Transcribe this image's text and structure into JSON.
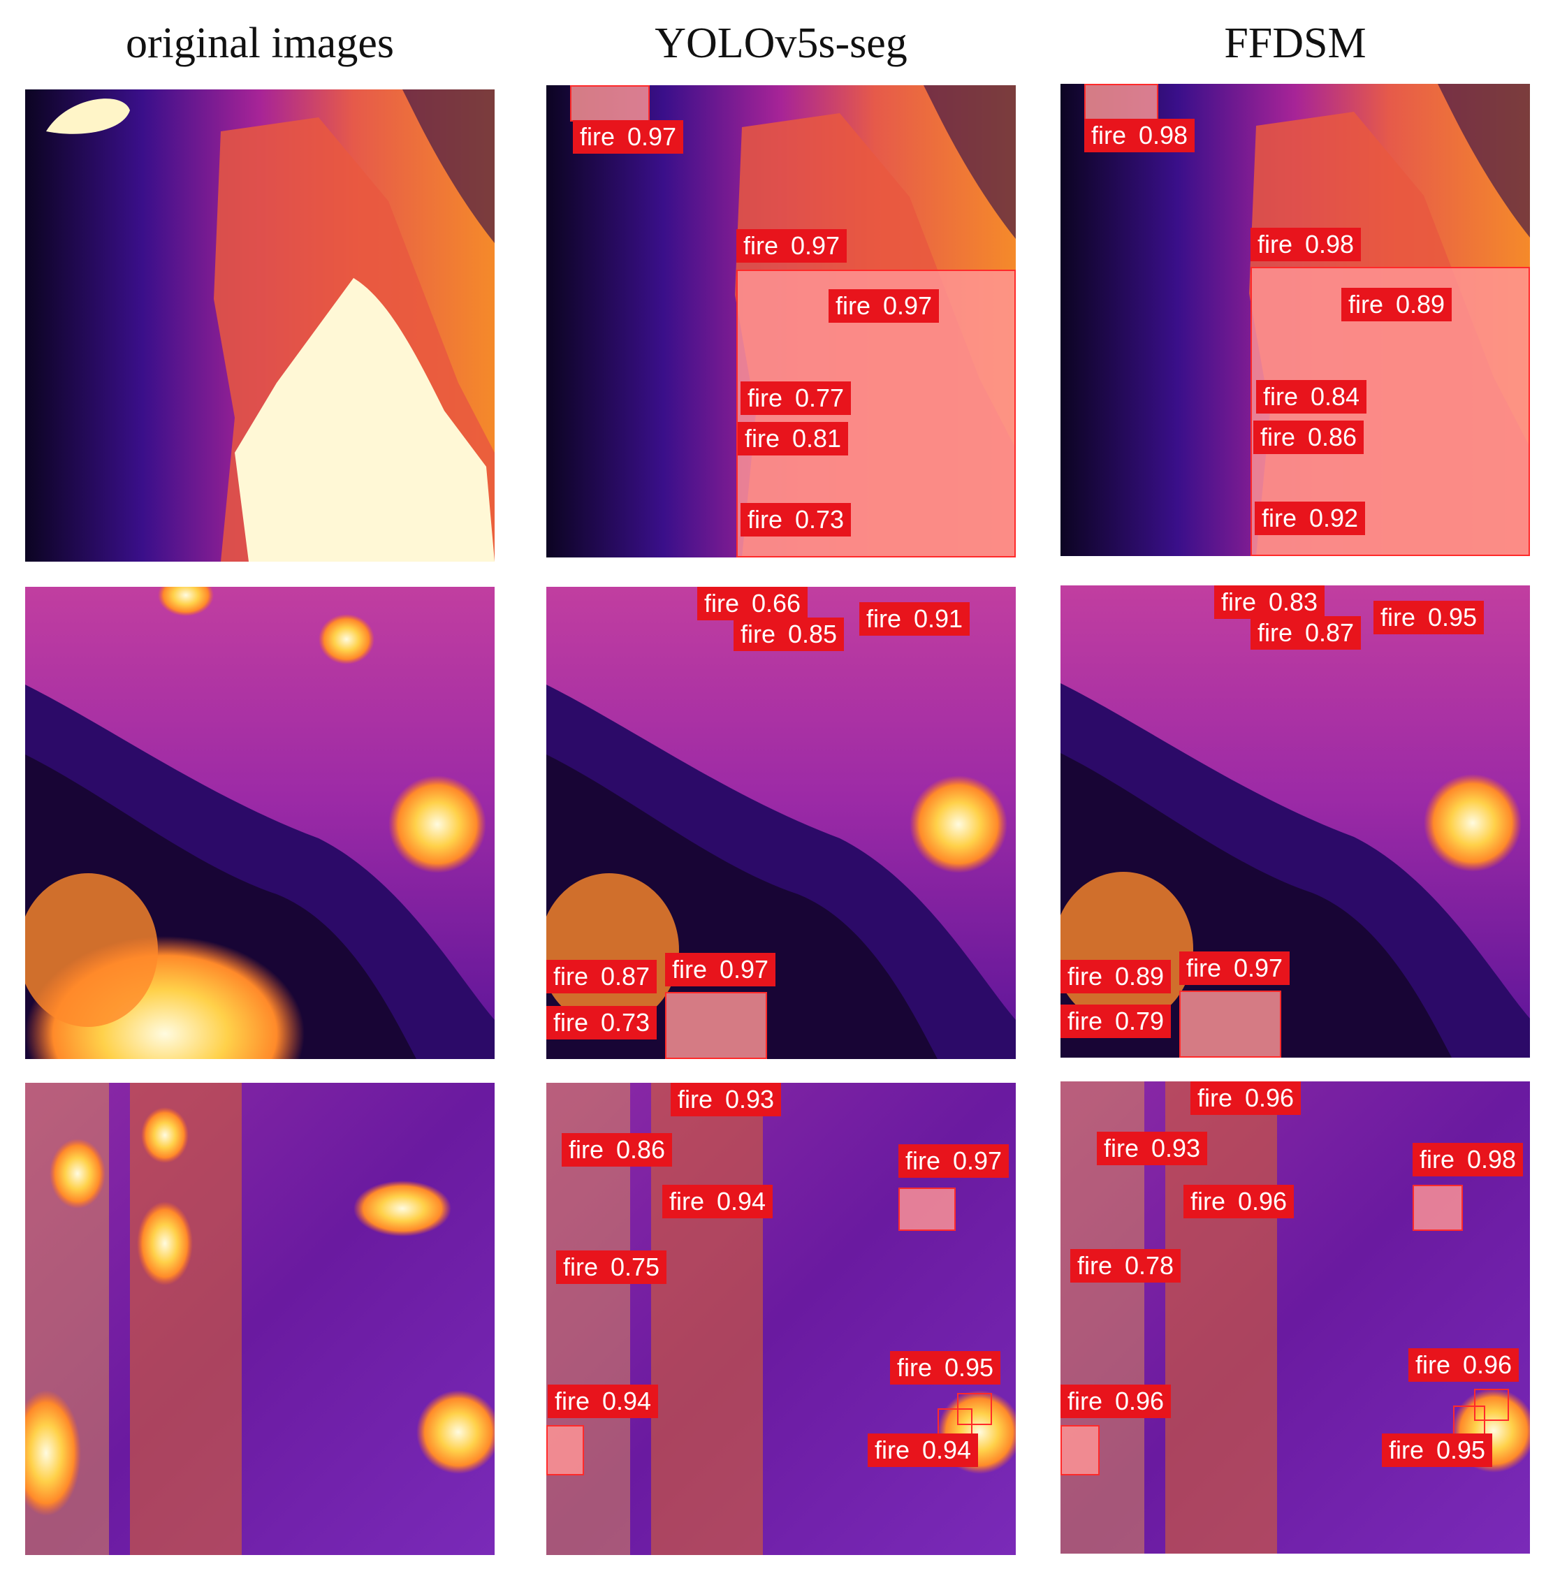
{
  "figure": {
    "col_titles": [
      "original images",
      "YOLOv5s-seg",
      "FFDSM"
    ],
    "label_class": "fire",
    "colors": {
      "box": "#ff2a2a",
      "label_bg": "#e8141c",
      "mask": "#ff9696"
    },
    "rows": [
      {
        "scene": "burning-slope",
        "yolo": [
          {
            "class": "fire",
            "score": "0.97"
          },
          {
            "class": "fire",
            "score": "0.97"
          },
          {
            "class": "fire",
            "score": "0.97"
          },
          {
            "class": "fire",
            "score": "0.77"
          },
          {
            "class": "fire",
            "score": "0.81"
          },
          {
            "class": "fire",
            "score": "0.73"
          }
        ],
        "ffdsm": [
          {
            "class": "fire",
            "score": "0.98"
          },
          {
            "class": "fire",
            "score": "0.98"
          },
          {
            "class": "fire",
            "score": "0.89"
          },
          {
            "class": "fire",
            "score": "0.84"
          },
          {
            "class": "fire",
            "score": "0.86"
          },
          {
            "class": "fire",
            "score": "0.92"
          }
        ]
      },
      {
        "scene": "forest-hillside",
        "yolo": [
          {
            "class": "fire",
            "score": "0.66"
          },
          {
            "class": "fire",
            "score": "0.85"
          },
          {
            "class": "fire",
            "score": "0.91"
          },
          {
            "class": "fire",
            "score": "0.87"
          },
          {
            "class": "fire",
            "score": "0.97"
          },
          {
            "class": "fire",
            "score": "0.73"
          }
        ],
        "ffdsm": [
          {
            "class": "fire",
            "score": "0.83"
          },
          {
            "class": "fire",
            "score": "0.87"
          },
          {
            "class": "fire",
            "score": "0.95"
          },
          {
            "class": "fire",
            "score": "0.89"
          },
          {
            "class": "fire",
            "score": "0.97"
          },
          {
            "class": "fire",
            "score": "0.79"
          }
        ]
      },
      {
        "scene": "dense-forest",
        "yolo": [
          {
            "class": "fire",
            "score": "0.93"
          },
          {
            "class": "fire",
            "score": "0.86"
          },
          {
            "class": "fire",
            "score": "0.97"
          },
          {
            "class": "fire",
            "score": "0.94"
          },
          {
            "class": "fire",
            "score": "0.75"
          },
          {
            "class": "fire",
            "score": "0.95"
          },
          {
            "class": "fire",
            "score": "0.94"
          },
          {
            "class": "fire",
            "score": "0.94"
          }
        ],
        "ffdsm": [
          {
            "class": "fire",
            "score": "0.96"
          },
          {
            "class": "fire",
            "score": "0.93"
          },
          {
            "class": "fire",
            "score": "0.98"
          },
          {
            "class": "fire",
            "score": "0.96"
          },
          {
            "class": "fire",
            "score": "0.78"
          },
          {
            "class": "fire",
            "score": "0.96"
          },
          {
            "class": "fire",
            "score": "0.96"
          },
          {
            "class": "fire",
            "score": "0.95"
          }
        ]
      }
    ]
  }
}
